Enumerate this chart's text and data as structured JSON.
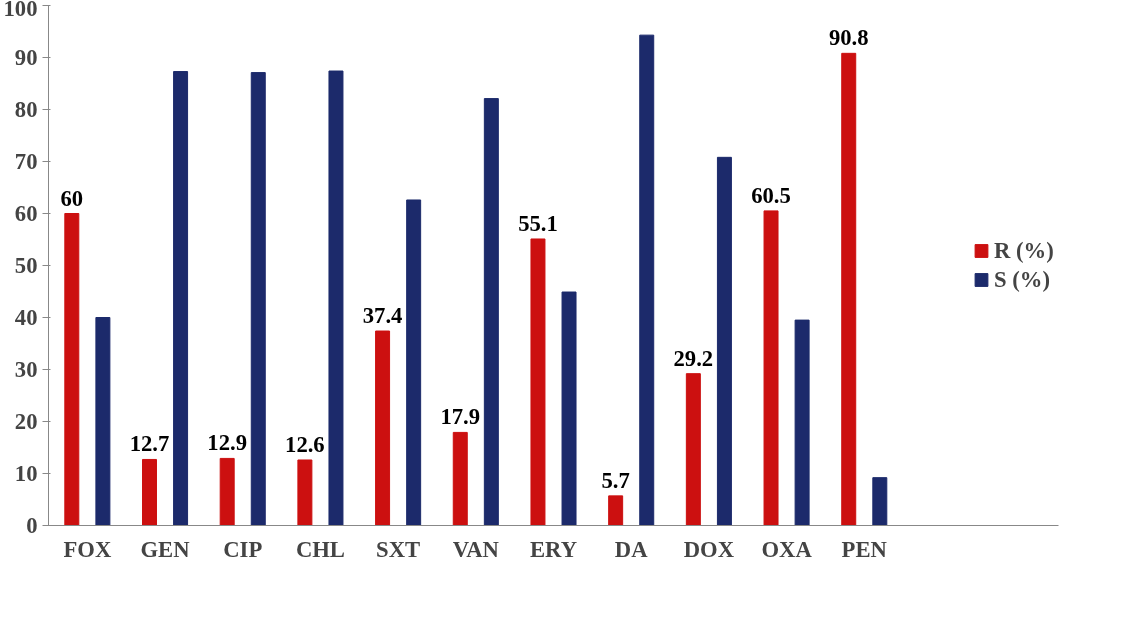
{
  "chart_data": {
    "type": "bar",
    "categories": [
      "FOX",
      "GEN",
      "CIP",
      "CHL",
      "SXT",
      "VAN",
      "ERY",
      "DA",
      "DOX",
      "OXA",
      "PEN"
    ],
    "series": [
      {
        "name": "R (%)",
        "color": "#cc1010",
        "values": [
          60,
          12.7,
          12.9,
          12.6,
          37.4,
          17.9,
          55.1,
          5.7,
          29.2,
          60.5,
          90.8
        ],
        "value_labels": [
          "60",
          "12.7",
          "12.9",
          "12.6",
          "37.4",
          "17.9",
          "55.1",
          "5.7",
          "29.2",
          "60.5",
          "90.8"
        ]
      },
      {
        "name": "S (%)",
        "color": "#1c2a6b",
        "values": [
          40,
          87.3,
          87.1,
          87.4,
          62.6,
          82.1,
          44.9,
          94.3,
          70.8,
          39.5,
          9.2
        ]
      }
    ],
    "ylim": [
      0,
      100
    ],
    "yticks": [
      0,
      10,
      20,
      30,
      40,
      50,
      60,
      70,
      80,
      90,
      100
    ],
    "grid": false,
    "legend": "right"
  }
}
